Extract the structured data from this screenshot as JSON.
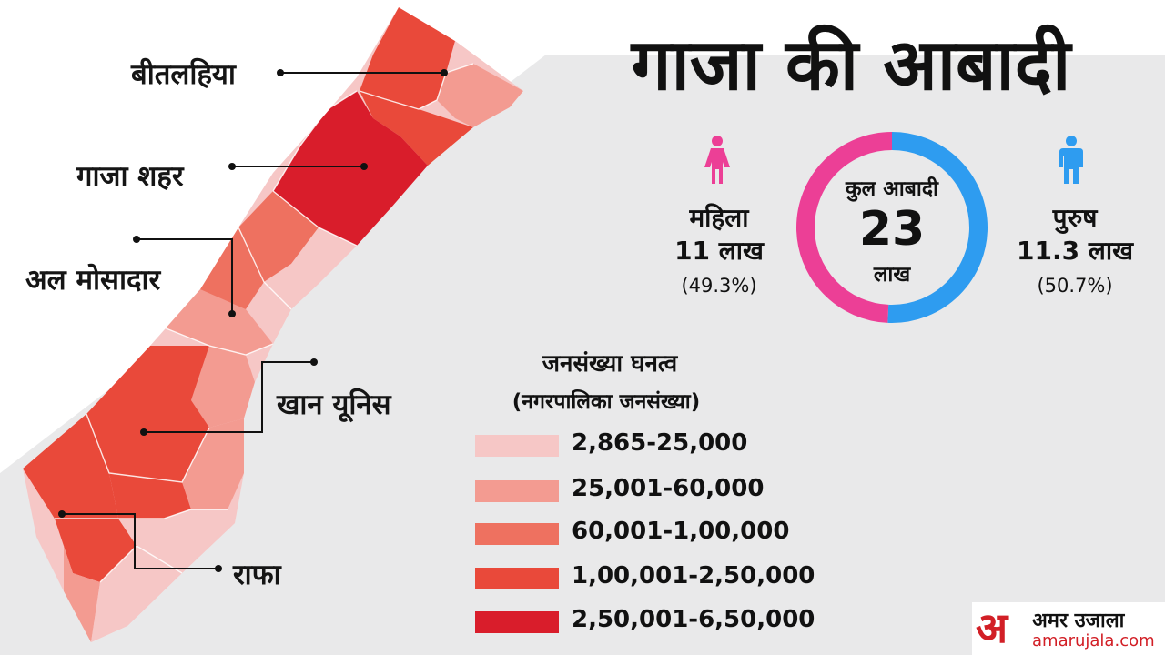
{
  "title": "गाजा की आबादी",
  "regions": [
    {
      "name": "बीतलहिया"
    },
    {
      "name": "गाजा शहर"
    },
    {
      "name": "अल मोसादार"
    },
    {
      "name": "खान यूनिस"
    },
    {
      "name": "राफा"
    }
  ],
  "population": {
    "total_label": "कुल आबादी",
    "total_value": "23",
    "total_unit": "लाख",
    "female": {
      "label": "महिला",
      "value": "11 लाख",
      "percent": "(49.3%)",
      "share": 49.3,
      "color": "#ec3f96"
    },
    "male": {
      "label": "पुरुष",
      "value": "11.3 लाख",
      "percent": "(50.7%)",
      "share": 50.7,
      "color": "#2e9cf0"
    }
  },
  "legend": {
    "title": "जनसंख्या घनत्व",
    "subtitle": "(नगरपालिका जनसंख्या)",
    "items": [
      {
        "label": "2,865-25,000",
        "color": "#f6c7c6"
      },
      {
        "label": "25,001-60,000",
        "color": "#f39b91"
      },
      {
        "label": "60,001-1,00,000",
        "color": "#ee7160"
      },
      {
        "label": "1,00,001-2,50,000",
        "color": "#e9493a"
      },
      {
        "label": "2,50,001-6,50,000",
        "color": "#d91d2b"
      }
    ]
  },
  "logo": {
    "mark": "अ",
    "name": "अमर उजाला",
    "url": "amarujala.com"
  },
  "icons": {
    "female": "female-person-icon",
    "male": "male-person-icon"
  }
}
